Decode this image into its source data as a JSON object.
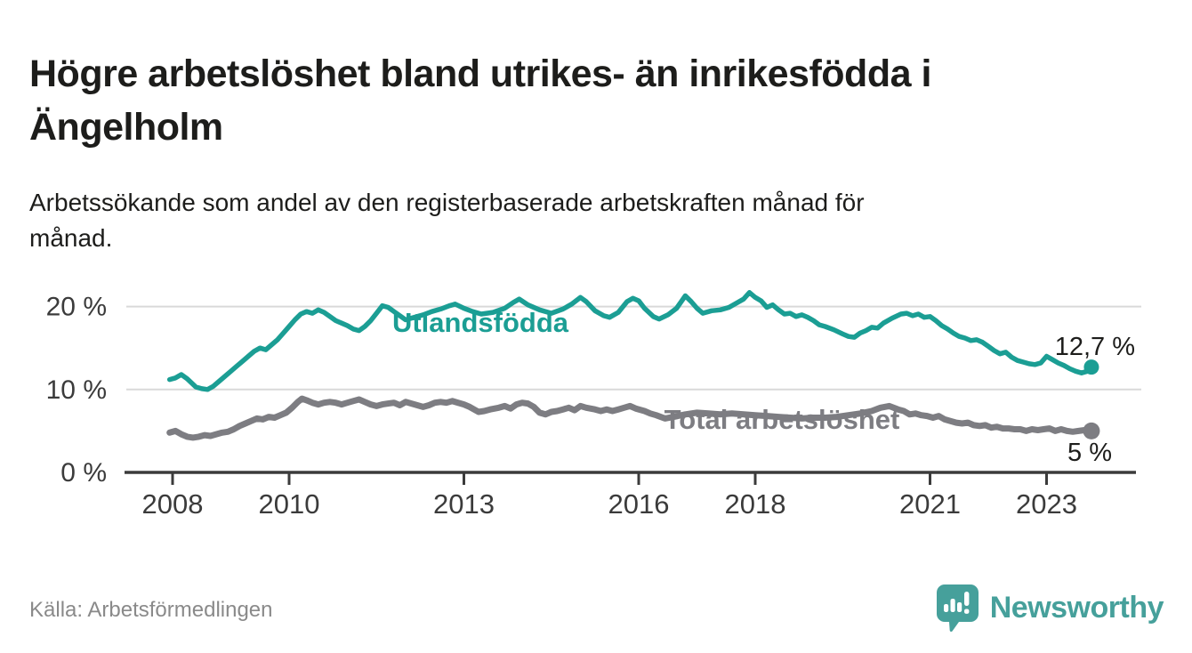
{
  "header": {
    "title_lines": [
      "Högre arbetslöshet bland utrikes- än inrikesfödda i",
      "Ängelholm"
    ],
    "subtitle_lines": [
      "Arbetssökande som andel av den registerbaserade arbetskraften månad för",
      "månad."
    ]
  },
  "footer": {
    "source": "Källa: Arbetsförmedlingen",
    "brand": "Newsworthy"
  },
  "colors": {
    "foreign_born_line": "#1b9e94",
    "total_line": "#7d7d82",
    "axis": "#3b3b3b",
    "grid": "#d9d9d9",
    "text_dark": "#1d1d1b",
    "source_text": "#8a8a8a",
    "logo_teal": "#46a09b",
    "background": "#ffffff"
  },
  "chart_data": {
    "type": "line",
    "title": "Högre arbetslöshet bland utrikes- än inrikesfödda i Ängelholm",
    "subtitle": "Arbetssökande som andel av den registerbaserade arbetskraften månad för månad.",
    "xlabel": "",
    "ylabel": "",
    "unit": "%",
    "xlim": [
      2007.9,
      2024.15
    ],
    "ylim": [
      0,
      23.5
    ],
    "grid": "horizontal",
    "legend_position": "inline-labels",
    "y_ticks": [
      {
        "value": 20,
        "label": "20 %"
      },
      {
        "value": 10,
        "label": "10 %"
      },
      {
        "value": 0,
        "label": "0 %"
      }
    ],
    "x_ticks": [
      {
        "value": 2008,
        "label": "2008"
      },
      {
        "value": 2010,
        "label": "2010"
      },
      {
        "value": 2013,
        "label": "2013"
      },
      {
        "value": 2016,
        "label": "2016"
      },
      {
        "value": 2018,
        "label": "2018"
      },
      {
        "value": 2021,
        "label": "2021"
      },
      {
        "value": 2023,
        "label": "2023"
      }
    ],
    "series": [
      {
        "name": "Utlandsfödda",
        "color": "#1b9e94",
        "end_label": "12,7 %",
        "last_value": 12.7,
        "points": [
          [
            2007.95,
            11.2
          ],
          [
            2008.05,
            11.4
          ],
          [
            2008.15,
            11.8
          ],
          [
            2008.25,
            11.3
          ],
          [
            2008.4,
            10.3
          ],
          [
            2008.5,
            10.1
          ],
          [
            2008.6,
            10.0
          ],
          [
            2008.7,
            10.4
          ],
          [
            2008.8,
            11.0
          ],
          [
            2008.9,
            11.6
          ],
          [
            2009.0,
            12.2
          ],
          [
            2009.1,
            12.8
          ],
          [
            2009.2,
            13.4
          ],
          [
            2009.3,
            14.0
          ],
          [
            2009.4,
            14.6
          ],
          [
            2009.5,
            15.0
          ],
          [
            2009.6,
            14.8
          ],
          [
            2009.7,
            15.4
          ],
          [
            2009.8,
            16.0
          ],
          [
            2009.9,
            16.8
          ],
          [
            2010.0,
            17.6
          ],
          [
            2010.1,
            18.4
          ],
          [
            2010.2,
            19.1
          ],
          [
            2010.3,
            19.4
          ],
          [
            2010.4,
            19.2
          ],
          [
            2010.5,
            19.6
          ],
          [
            2010.6,
            19.3
          ],
          [
            2010.7,
            18.8
          ],
          [
            2010.8,
            18.3
          ],
          [
            2010.9,
            18.0
          ],
          [
            2011.0,
            17.7
          ],
          [
            2011.1,
            17.3
          ],
          [
            2011.2,
            17.1
          ],
          [
            2011.3,
            17.6
          ],
          [
            2011.4,
            18.3
          ],
          [
            2011.5,
            19.2
          ],
          [
            2011.6,
            20.1
          ],
          [
            2011.7,
            19.9
          ],
          [
            2011.8,
            19.4
          ],
          [
            2011.9,
            18.9
          ],
          [
            2012.0,
            18.4
          ],
          [
            2012.15,
            18.7
          ],
          [
            2012.3,
            19.0
          ],
          [
            2012.45,
            19.4
          ],
          [
            2012.6,
            19.7
          ],
          [
            2012.75,
            20.1
          ],
          [
            2012.85,
            20.3
          ],
          [
            2013.0,
            19.8
          ],
          [
            2013.15,
            19.4
          ],
          [
            2013.3,
            19.1
          ],
          [
            2013.5,
            19.3
          ],
          [
            2013.7,
            19.8
          ],
          [
            2013.85,
            20.5
          ],
          [
            2013.95,
            20.9
          ],
          [
            2014.1,
            20.2
          ],
          [
            2014.3,
            19.6
          ],
          [
            2014.5,
            19.2
          ],
          [
            2014.7,
            19.7
          ],
          [
            2014.85,
            20.3
          ],
          [
            2015.0,
            21.1
          ],
          [
            2015.1,
            20.6
          ],
          [
            2015.25,
            19.5
          ],
          [
            2015.4,
            18.9
          ],
          [
            2015.5,
            18.7
          ],
          [
            2015.65,
            19.3
          ],
          [
            2015.8,
            20.6
          ],
          [
            2015.9,
            21.0
          ],
          [
            2016.0,
            20.7
          ],
          [
            2016.1,
            19.8
          ],
          [
            2016.25,
            18.8
          ],
          [
            2016.35,
            18.5
          ],
          [
            2016.5,
            19.0
          ],
          [
            2016.65,
            19.8
          ],
          [
            2016.8,
            21.3
          ],
          [
            2016.9,
            20.6
          ],
          [
            2017.0,
            19.8
          ],
          [
            2017.1,
            19.2
          ],
          [
            2017.25,
            19.5
          ],
          [
            2017.4,
            19.6
          ],
          [
            2017.55,
            19.9
          ],
          [
            2017.7,
            20.5
          ],
          [
            2017.8,
            20.9
          ],
          [
            2017.9,
            21.7
          ],
          [
            2018.0,
            21.1
          ],
          [
            2018.1,
            20.7
          ],
          [
            2018.2,
            19.9
          ],
          [
            2018.3,
            20.2
          ],
          [
            2018.4,
            19.6
          ],
          [
            2018.5,
            19.1
          ],
          [
            2018.6,
            19.2
          ],
          [
            2018.7,
            18.8
          ],
          [
            2018.8,
            19.0
          ],
          [
            2018.9,
            18.7
          ],
          [
            2019.0,
            18.3
          ],
          [
            2019.1,
            17.8
          ],
          [
            2019.2,
            17.6
          ],
          [
            2019.35,
            17.2
          ],
          [
            2019.5,
            16.7
          ],
          [
            2019.6,
            16.4
          ],
          [
            2019.7,
            16.3
          ],
          [
            2019.8,
            16.8
          ],
          [
            2019.9,
            17.1
          ],
          [
            2020.0,
            17.5
          ],
          [
            2020.1,
            17.4
          ],
          [
            2020.2,
            18.0
          ],
          [
            2020.35,
            18.6
          ],
          [
            2020.5,
            19.1
          ],
          [
            2020.6,
            19.2
          ],
          [
            2020.7,
            18.9
          ],
          [
            2020.8,
            19.1
          ],
          [
            2020.9,
            18.7
          ],
          [
            2021.0,
            18.8
          ],
          [
            2021.1,
            18.3
          ],
          [
            2021.2,
            17.7
          ],
          [
            2021.3,
            17.3
          ],
          [
            2021.4,
            16.8
          ],
          [
            2021.5,
            16.4
          ],
          [
            2021.6,
            16.2
          ],
          [
            2021.7,
            15.9
          ],
          [
            2021.8,
            16.0
          ],
          [
            2021.9,
            15.7
          ],
          [
            2022.0,
            15.2
          ],
          [
            2022.1,
            14.7
          ],
          [
            2022.2,
            14.3
          ],
          [
            2022.3,
            14.5
          ],
          [
            2022.4,
            13.9
          ],
          [
            2022.5,
            13.5
          ],
          [
            2022.6,
            13.3
          ],
          [
            2022.7,
            13.1
          ],
          [
            2022.8,
            13.0
          ],
          [
            2022.9,
            13.2
          ],
          [
            2023.0,
            14.0
          ],
          [
            2023.1,
            13.6
          ],
          [
            2023.2,
            13.2
          ],
          [
            2023.3,
            12.9
          ],
          [
            2023.4,
            12.5
          ],
          [
            2023.5,
            12.2
          ],
          [
            2023.6,
            12.0
          ],
          [
            2023.7,
            12.2
          ],
          [
            2023.77,
            12.7
          ]
        ]
      },
      {
        "name": "Total arbetslöshet",
        "color": "#7d7d82",
        "end_label": "5 %",
        "last_value": 5.0,
        "points": [
          [
            2007.95,
            4.8
          ],
          [
            2008.05,
            5.0
          ],
          [
            2008.15,
            4.6
          ],
          [
            2008.25,
            4.3
          ],
          [
            2008.35,
            4.2
          ],
          [
            2008.45,
            4.3
          ],
          [
            2008.55,
            4.5
          ],
          [
            2008.65,
            4.4
          ],
          [
            2008.75,
            4.6
          ],
          [
            2008.85,
            4.8
          ],
          [
            2008.95,
            4.9
          ],
          [
            2009.05,
            5.2
          ],
          [
            2009.15,
            5.6
          ],
          [
            2009.25,
            5.9
          ],
          [
            2009.35,
            6.2
          ],
          [
            2009.45,
            6.5
          ],
          [
            2009.55,
            6.4
          ],
          [
            2009.65,
            6.7
          ],
          [
            2009.75,
            6.6
          ],
          [
            2009.85,
            6.9
          ],
          [
            2009.95,
            7.2
          ],
          [
            2010.05,
            7.8
          ],
          [
            2010.15,
            8.5
          ],
          [
            2010.22,
            8.9
          ],
          [
            2010.3,
            8.7
          ],
          [
            2010.4,
            8.4
          ],
          [
            2010.5,
            8.2
          ],
          [
            2010.6,
            8.4
          ],
          [
            2010.7,
            8.5
          ],
          [
            2010.8,
            8.4
          ],
          [
            2010.9,
            8.2
          ],
          [
            2011.0,
            8.4
          ],
          [
            2011.1,
            8.6
          ],
          [
            2011.2,
            8.8
          ],
          [
            2011.3,
            8.5
          ],
          [
            2011.4,
            8.2
          ],
          [
            2011.5,
            8.0
          ],
          [
            2011.6,
            8.2
          ],
          [
            2011.7,
            8.3
          ],
          [
            2011.8,
            8.4
          ],
          [
            2011.9,
            8.1
          ],
          [
            2012.0,
            8.5
          ],
          [
            2012.1,
            8.3
          ],
          [
            2012.2,
            8.1
          ],
          [
            2012.3,
            7.9
          ],
          [
            2012.4,
            8.1
          ],
          [
            2012.5,
            8.4
          ],
          [
            2012.6,
            8.5
          ],
          [
            2012.7,
            8.4
          ],
          [
            2012.8,
            8.6
          ],
          [
            2012.9,
            8.4
          ],
          [
            2013.0,
            8.2
          ],
          [
            2013.1,
            7.9
          ],
          [
            2013.25,
            7.3
          ],
          [
            2013.35,
            7.4
          ],
          [
            2013.45,
            7.6
          ],
          [
            2013.6,
            7.8
          ],
          [
            2013.7,
            8.0
          ],
          [
            2013.8,
            7.7
          ],
          [
            2013.9,
            8.2
          ],
          [
            2014.0,
            8.4
          ],
          [
            2014.1,
            8.3
          ],
          [
            2014.2,
            7.9
          ],
          [
            2014.3,
            7.2
          ],
          [
            2014.4,
            7.0
          ],
          [
            2014.5,
            7.3
          ],
          [
            2014.6,
            7.4
          ],
          [
            2014.7,
            7.6
          ],
          [
            2014.8,
            7.8
          ],
          [
            2014.9,
            7.5
          ],
          [
            2015.0,
            8.0
          ],
          [
            2015.1,
            7.8
          ],
          [
            2015.25,
            7.6
          ],
          [
            2015.35,
            7.4
          ],
          [
            2015.45,
            7.6
          ],
          [
            2015.55,
            7.4
          ],
          [
            2015.65,
            7.6
          ],
          [
            2015.75,
            7.8
          ],
          [
            2015.85,
            8.0
          ],
          [
            2015.95,
            7.7
          ],
          [
            2016.1,
            7.4
          ],
          [
            2016.2,
            7.1
          ],
          [
            2016.3,
            6.9
          ],
          [
            2016.45,
            6.5
          ],
          [
            2016.6,
            6.7
          ],
          [
            2016.8,
            7.0
          ],
          [
            2017.0,
            7.2
          ],
          [
            2017.2,
            7.1
          ],
          [
            2017.4,
            7.0
          ],
          [
            2017.6,
            7.1
          ],
          [
            2017.8,
            7.0
          ],
          [
            2018.0,
            6.9
          ],
          [
            2018.2,
            6.8
          ],
          [
            2018.4,
            6.7
          ],
          [
            2018.6,
            6.6
          ],
          [
            2018.8,
            6.5
          ],
          [
            2019.0,
            6.6
          ],
          [
            2019.2,
            6.6
          ],
          [
            2019.4,
            6.7
          ],
          [
            2019.6,
            6.9
          ],
          [
            2019.8,
            7.1
          ],
          [
            2020.0,
            7.4
          ],
          [
            2020.15,
            7.8
          ],
          [
            2020.3,
            8.0
          ],
          [
            2020.45,
            7.6
          ],
          [
            2020.55,
            7.4
          ],
          [
            2020.65,
            7.0
          ],
          [
            2020.75,
            7.1
          ],
          [
            2020.85,
            6.9
          ],
          [
            2020.95,
            6.8
          ],
          [
            2021.05,
            6.6
          ],
          [
            2021.15,
            6.8
          ],
          [
            2021.25,
            6.4
          ],
          [
            2021.35,
            6.2
          ],
          [
            2021.45,
            6.0
          ],
          [
            2021.55,
            5.9
          ],
          [
            2021.65,
            6.0
          ],
          [
            2021.75,
            5.7
          ],
          [
            2021.85,
            5.6
          ],
          [
            2021.95,
            5.7
          ],
          [
            2022.05,
            5.4
          ],
          [
            2022.15,
            5.5
          ],
          [
            2022.25,
            5.3
          ],
          [
            2022.35,
            5.3
          ],
          [
            2022.45,
            5.2
          ],
          [
            2022.55,
            5.2
          ],
          [
            2022.65,
            5.0
          ],
          [
            2022.75,
            5.2
          ],
          [
            2022.85,
            5.1
          ],
          [
            2022.95,
            5.2
          ],
          [
            2023.05,
            5.3
          ],
          [
            2023.15,
            5.0
          ],
          [
            2023.25,
            5.2
          ],
          [
            2023.35,
            5.0
          ],
          [
            2023.45,
            4.9
          ],
          [
            2023.55,
            5.0
          ],
          [
            2023.65,
            5.1
          ],
          [
            2023.77,
            5.0
          ]
        ]
      }
    ]
  }
}
